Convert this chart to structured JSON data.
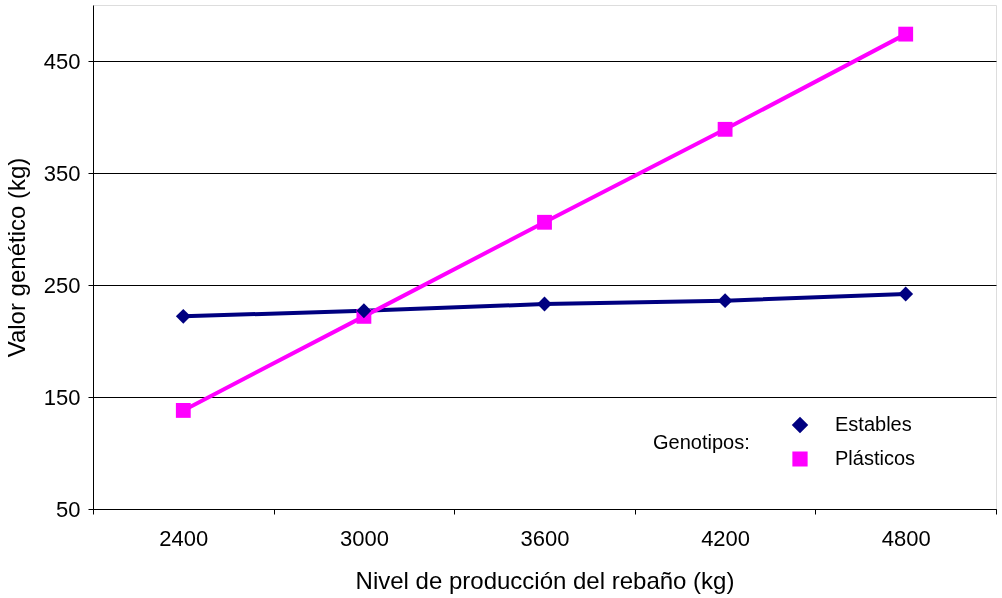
{
  "chart_data": {
    "type": "line",
    "xlabel": "Nivel de producción del rebaño (kg)",
    "ylabel": "Valor genético (kg)",
    "legend_title": "Genotipos:",
    "categories": [
      "2400",
      "3000",
      "3600",
      "4200",
      "4800"
    ],
    "series": [
      {
        "name": "Estables",
        "color": "#000080",
        "marker": "diamond",
        "values": [
          222,
          227,
          233,
          236,
          242
        ]
      },
      {
        "name": "Plásticos",
        "color": "#ff00ff",
        "marker": "square",
        "values": [
          138,
          222,
          306,
          389,
          474
        ]
      }
    ],
    "ylim": [
      50,
      500
    ],
    "yticks": [
      50,
      150,
      250,
      350,
      450
    ],
    "grid": "y",
    "legend": "bottom right",
    "line_style": "solid"
  }
}
